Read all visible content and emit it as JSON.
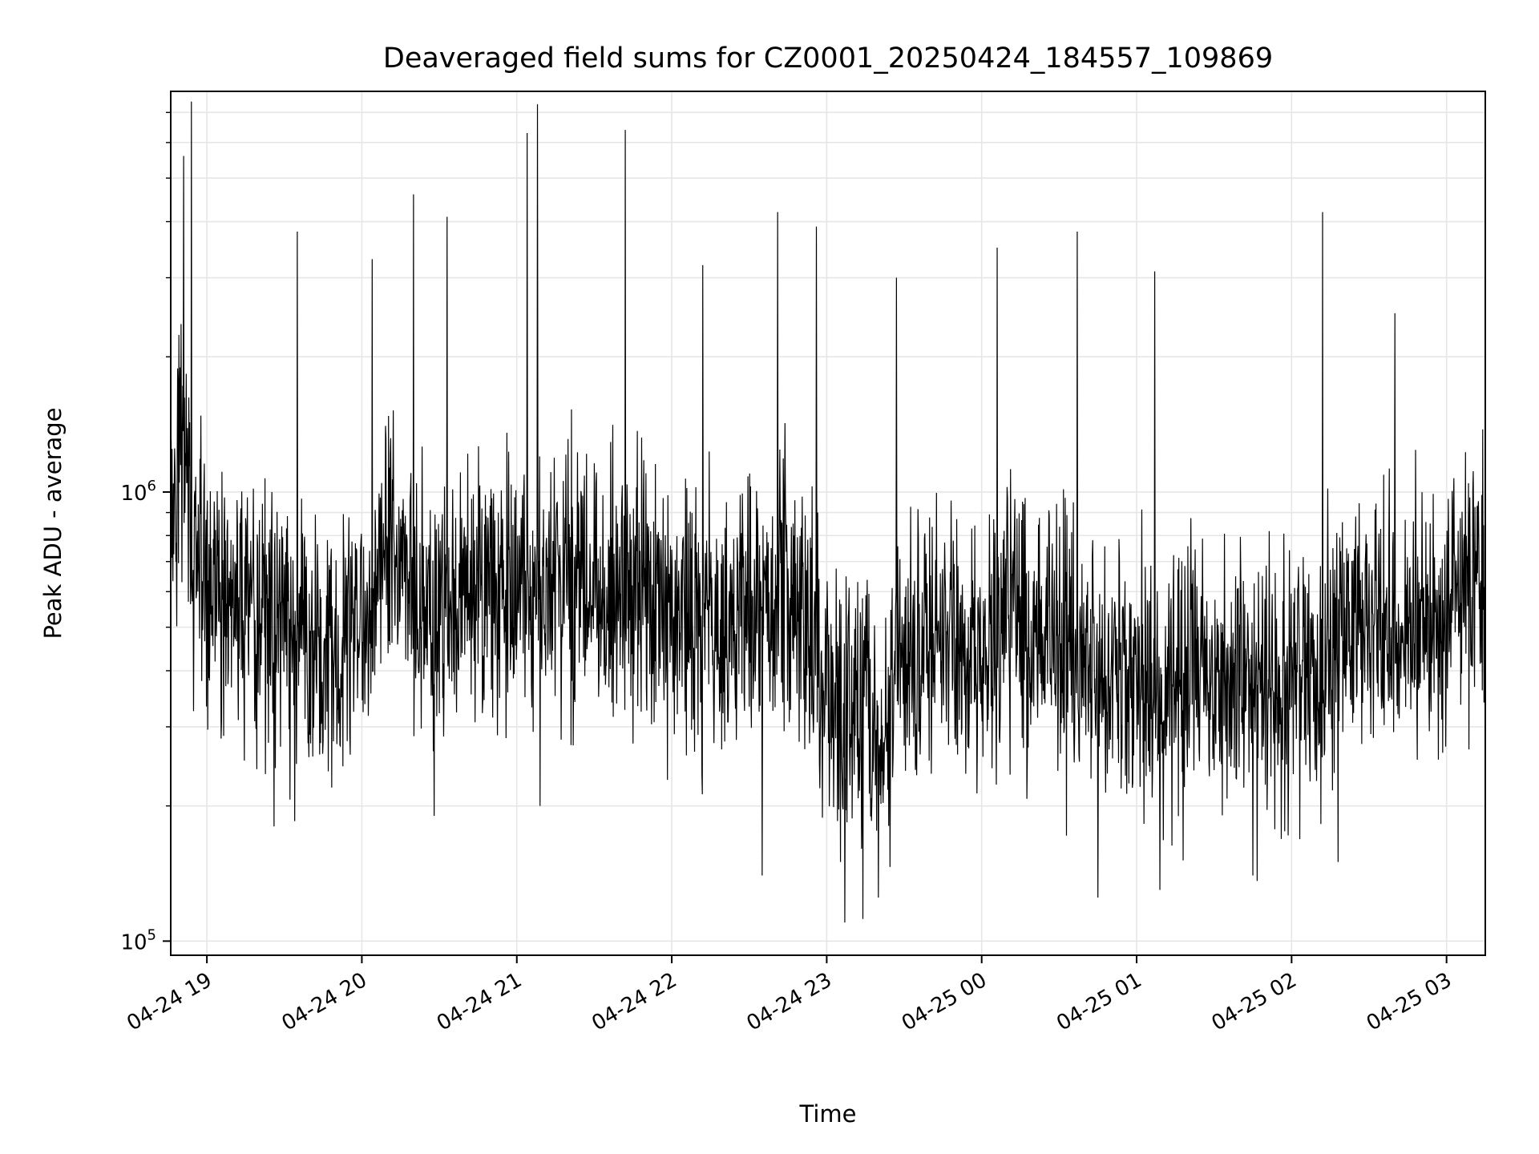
{
  "chart_data": {
    "type": "line",
    "title": "Deaveraged field sums for CZ0001_20250424_184557_109869",
    "xlabel": "Time",
    "ylabel": "Peak ADU - average",
    "yscale": "log",
    "ylim": [
      93000,
      7800000
    ],
    "xlim": [
      "2025-04-24 18:46",
      "2025-04-25 03:15"
    ],
    "grid": true,
    "x_ticks": [
      "04-24 19",
      "04-24 20",
      "04-24 21",
      "04-24 22",
      "04-24 23",
      "04-25 00",
      "04-25 01",
      "04-25 02",
      "04-25 03"
    ],
    "y_ticks": [
      {
        "base": "10",
        "exp": "5",
        "value": 100000
      },
      {
        "base": "10",
        "exp": "6",
        "value": 1000000
      }
    ],
    "series": [
      {
        "color": "#000000",
        "x": [
          "2025-04-24 18:46",
          "2025-04-24 18:50",
          "2025-04-24 18:55",
          "2025-04-24 19:00",
          "2025-04-24 19:10",
          "2025-04-24 19:20",
          "2025-04-24 19:30",
          "2025-04-24 19:40",
          "2025-04-24 19:50",
          "2025-04-24 20:00",
          "2025-04-24 20:10",
          "2025-04-24 20:20",
          "2025-04-24 20:30",
          "2025-04-24 20:40",
          "2025-04-24 20:50",
          "2025-04-24 21:00",
          "2025-04-24 21:10",
          "2025-04-24 21:20",
          "2025-04-24 21:30",
          "2025-04-24 21:40",
          "2025-04-24 21:50",
          "2025-04-24 22:00",
          "2025-04-24 22:10",
          "2025-04-24 22:20",
          "2025-04-24 22:30",
          "2025-04-24 22:40",
          "2025-04-24 22:50",
          "2025-04-24 23:00",
          "2025-04-24 23:10",
          "2025-04-24 23:20",
          "2025-04-24 23:30",
          "2025-04-24 23:40",
          "2025-04-24 23:50",
          "2025-04-25 00:00",
          "2025-04-25 00:10",
          "2025-04-25 00:20",
          "2025-04-25 00:30",
          "2025-04-25 00:40",
          "2025-04-25 00:50",
          "2025-04-25 01:00",
          "2025-04-25 01:10",
          "2025-04-25 01:20",
          "2025-04-25 01:30",
          "2025-04-25 01:40",
          "2025-04-25 01:50",
          "2025-04-25 02:00",
          "2025-04-25 02:10",
          "2025-04-25 02:20",
          "2025-04-25 02:30",
          "2025-04-25 02:40",
          "2025-04-25 02:50",
          "2025-04-25 03:00",
          "2025-04-25 03:10",
          "2025-04-25 03:15"
        ],
        "y": [
          900000,
          1600000,
          800000,
          700000,
          650000,
          600000,
          580000,
          500000,
          450000,
          560000,
          850000,
          650000,
          580000,
          620000,
          700000,
          620000,
          680000,
          720000,
          680000,
          650000,
          630000,
          610000,
          580000,
          560000,
          600000,
          620000,
          620000,
          380000,
          360000,
          330000,
          460000,
          520000,
          500000,
          520000,
          560000,
          540000,
          480000,
          440000,
          420000,
          450000,
          430000,
          400000,
          430000,
          400000,
          380000,
          420000,
          450000,
          560000,
          600000,
          520000,
          550000,
          620000,
          700000,
          760000
        ],
        "noise_range": [
          0.35,
          2.6
        ],
        "spikes": [
          {
            "x": "2025-04-24 18:51",
            "y": 5600000
          },
          {
            "x": "2025-04-24 18:54",
            "y": 7400000
          },
          {
            "x": "2025-04-24 19:35",
            "y": 3800000
          },
          {
            "x": "2025-04-24 20:04",
            "y": 3300000
          },
          {
            "x": "2025-04-24 20:20",
            "y": 4600000
          },
          {
            "x": "2025-04-24 20:33",
            "y": 4100000
          },
          {
            "x": "2025-04-24 21:04",
            "y": 6300000
          },
          {
            "x": "2025-04-24 21:08",
            "y": 7300000
          },
          {
            "x": "2025-04-24 21:42",
            "y": 6400000
          },
          {
            "x": "2025-04-24 22:12",
            "y": 3200000
          },
          {
            "x": "2025-04-24 22:41",
            "y": 4200000
          },
          {
            "x": "2025-04-24 22:56",
            "y": 3900000
          },
          {
            "x": "2025-04-24 23:27",
            "y": 3000000
          },
          {
            "x": "2025-04-25 00:06",
            "y": 3500000
          },
          {
            "x": "2025-04-25 00:37",
            "y": 3800000
          },
          {
            "x": "2025-04-25 01:07",
            "y": 3100000
          },
          {
            "x": "2025-04-25 02:12",
            "y": 4200000
          },
          {
            "x": "2025-04-25 02:40",
            "y": 2500000
          }
        ],
        "dips": [
          {
            "x": "2025-04-24 19:26",
            "y": 180000
          },
          {
            "x": "2025-04-24 19:34",
            "y": 185000
          },
          {
            "x": "2025-04-24 20:28",
            "y": 190000
          },
          {
            "x": "2025-04-24 21:09",
            "y": 200000
          },
          {
            "x": "2025-04-24 22:35",
            "y": 140000
          },
          {
            "x": "2025-04-24 23:07",
            "y": 110000
          },
          {
            "x": "2025-04-24 23:14",
            "y": 112000
          },
          {
            "x": "2025-04-24 23:20",
            "y": 125000
          },
          {
            "x": "2025-04-25 00:45",
            "y": 125000
          },
          {
            "x": "2025-04-25 01:09",
            "y": 130000
          },
          {
            "x": "2025-04-25 01:45",
            "y": 140000
          },
          {
            "x": "2025-04-25 02:18",
            "y": 150000
          }
        ]
      }
    ]
  }
}
